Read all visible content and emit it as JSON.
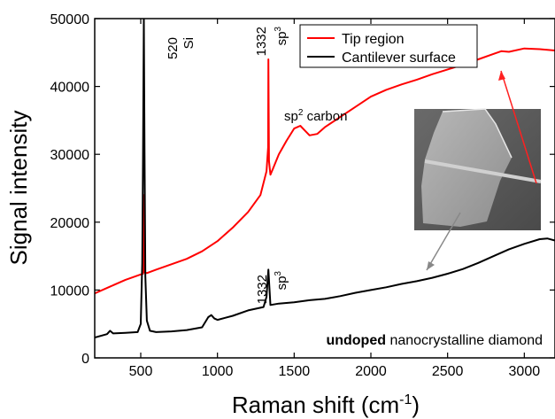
{
  "chart_data": {
    "type": "line",
    "xlabel_main": "Raman shift (cm",
    "xlabel_sup": "-1",
    "xlabel_end": ")",
    "ylabel": "Signal intensity",
    "xlim": [
      200,
      3200
    ],
    "ylim": [
      0,
      50000
    ],
    "x_ticks": [
      500,
      1000,
      1500,
      2000,
      2500,
      3000
    ],
    "y_ticks": [
      0,
      10000,
      20000,
      30000,
      40000,
      50000
    ],
    "x_tick_labels": [
      "500",
      "1000",
      "1500",
      "2000",
      "2500",
      "3000"
    ],
    "y_tick_labels": [
      "0",
      "10000",
      "20000",
      "30000",
      "40000",
      "50000"
    ],
    "legend_position": "top-right",
    "series": [
      {
        "name": "Tip region",
        "color": "#ff0000",
        "x": [
          200,
          300,
          400,
          500,
          515,
          520,
          525,
          540,
          600,
          700,
          800,
          900,
          1000,
          1100,
          1200,
          1280,
          1320,
          1330,
          1332,
          1336,
          1345,
          1360,
          1400,
          1450,
          1500,
          1540,
          1570,
          1600,
          1650,
          1700,
          1800,
          1900,
          2000,
          2100,
          2200,
          2300,
          2400,
          2500,
          2600,
          2700,
          2800,
          2850,
          2900,
          3000,
          3100,
          3200
        ],
        "values": [
          9500,
          10500,
          11500,
          12300,
          12400,
          24000,
          12600,
          12500,
          13000,
          13800,
          14600,
          15700,
          17200,
          19200,
          21500,
          24000,
          27500,
          31000,
          44000,
          29000,
          27000,
          27800,
          30000,
          32000,
          33800,
          34200,
          33500,
          32800,
          33000,
          34000,
          35500,
          37000,
          38500,
          39500,
          40300,
          41000,
          41800,
          42500,
          43200,
          44000,
          44800,
          45200,
          45100,
          45600,
          45500,
          45300
        ]
      },
      {
        "name": "Cantilever surface",
        "color": "#000000",
        "x": [
          200,
          280,
          300,
          320,
          400,
          480,
          500,
          510,
          515,
          520,
          525,
          530,
          540,
          560,
          600,
          700,
          800,
          900,
          940,
          960,
          980,
          1000,
          1100,
          1200,
          1300,
          1320,
          1332,
          1345,
          1400,
          1500,
          1600,
          1700,
          1800,
          1900,
          2000,
          2100,
          2200,
          2300,
          2400,
          2500,
          2600,
          2700,
          2800,
          2900,
          3000,
          3100,
          3150,
          3200
        ],
        "values": [
          3000,
          3500,
          4000,
          3600,
          3700,
          3800,
          5000,
          14000,
          30000,
          50000,
          30000,
          12000,
          5500,
          4000,
          3800,
          3900,
          4100,
          4500,
          6000,
          6300,
          5800,
          5600,
          6200,
          7000,
          7500,
          9000,
          13000,
          7800,
          8000,
          8200,
          8500,
          8700,
          9100,
          9600,
          10000,
          10400,
          10900,
          11300,
          11800,
          12400,
          13100,
          14000,
          15000,
          16000,
          16800,
          17500,
          17600,
          17300
        ]
      }
    ],
    "annotations": [
      {
        "lines": [
          "520",
          "Si"
        ],
        "x": 520,
        "y": 48500
      },
      {
        "lines": [
          "1332",
          "sp"
        ],
        "sup": "3",
        "x": 1332,
        "y": 48500,
        "key": "top"
      },
      {
        "lines": [
          "1332",
          "sp"
        ],
        "sup": "3",
        "x": 1332,
        "y": 15500,
        "key": "bottom"
      },
      {
        "text": "sp",
        "sup": "2",
        "rest": " carbon",
        "x": 1330,
        "y": 35500
      }
    ],
    "note_bold": "undoped",
    "note_normal": " nanocrystalline diamond",
    "inset": {
      "type": "micrograph",
      "colors": {
        "bg": "#5a5a5a",
        "diamond": "#9a9a9a"
      }
    }
  }
}
